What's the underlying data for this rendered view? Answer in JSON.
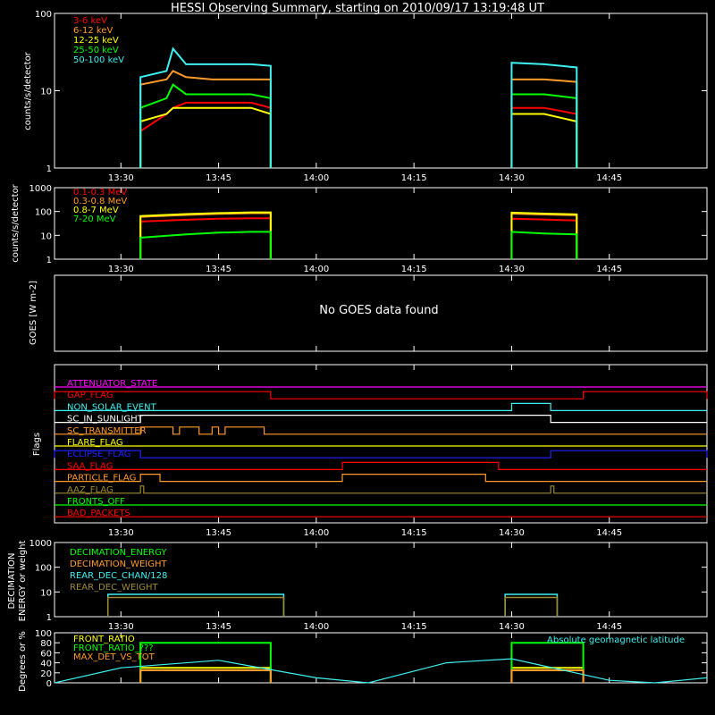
{
  "title": "HESSI Observing Summary, starting on 2010/09/17 13:19:48 UT",
  "time_ticks": [
    "13:30",
    "13:45",
    "14:00",
    "14:15",
    "14:30",
    "14:45"
  ],
  "colors": {
    "red": "#ff0000",
    "orange": "#ff9a2a",
    "yellow": "#ffff00",
    "green": "#00ff00",
    "cyan": "#3ff0f0",
    "blue": "#2020ff",
    "magenta": "#ff00ff",
    "brown": "#a08a30",
    "white": "#ffffff"
  },
  "chart_data": [
    {
      "type": "line",
      "ylabel": "counts/s/detector",
      "y_scale": "log",
      "ylim": [
        1,
        100
      ],
      "y_ticks": [
        "1",
        "10",
        "100"
      ],
      "x": [
        "13:33",
        "13:37",
        "13:38",
        "13:40",
        "13:44",
        "13:50",
        "13:53",
        "14:30",
        "14:35",
        "14:40"
      ],
      "series": [
        {
          "name": "3-6 keV",
          "color": "red",
          "values": [
            3,
            5,
            6,
            7,
            7,
            7,
            6,
            6,
            6,
            5
          ]
        },
        {
          "name": "6-12 keV",
          "color": "orange",
          "values": [
            12,
            14,
            18,
            15,
            14,
            14,
            14,
            14,
            14,
            13
          ]
        },
        {
          "name": "12-25 keV",
          "color": "yellow",
          "values": [
            4,
            5,
            6,
            6,
            6,
            6,
            5,
            5,
            5,
            4
          ]
        },
        {
          "name": "25-50 keV",
          "color": "green",
          "values": [
            6,
            8,
            12,
            9,
            9,
            9,
            8,
            9,
            9,
            8
          ]
        },
        {
          "name": "50-100 keV",
          "color": "cyan",
          "values": [
            15,
            18,
            35,
            22,
            22,
            22,
            21,
            23,
            22,
            20
          ]
        }
      ]
    },
    {
      "type": "line",
      "ylabel": "counts/s/detector",
      "y_scale": "log",
      "ylim": [
        1,
        1000
      ],
      "y_ticks": [
        "1",
        "10",
        "100",
        "1000"
      ],
      "x": [
        "13:33",
        "13:40",
        "13:45",
        "13:50",
        "13:53",
        "14:30",
        "14:35",
        "14:40"
      ],
      "series": [
        {
          "name": "0.1-0.3 MeV",
          "color": "red",
          "values": [
            38,
            45,
            50,
            52,
            52,
            50,
            46,
            42
          ]
        },
        {
          "name": "0.3-0.8 MeV",
          "color": "orange",
          "values": [
            60,
            72,
            80,
            85,
            85,
            82,
            75,
            70
          ]
        },
        {
          "name": "0.8-7 MeV",
          "color": "yellow",
          "values": [
            65,
            78,
            86,
            92,
            92,
            90,
            82,
            76
          ]
        },
        {
          "name": "7-20 MeV",
          "color": "green",
          "values": [
            8,
            11,
            13,
            14,
            14,
            14,
            12,
            11
          ]
        }
      ]
    },
    {
      "type": "line",
      "ylabel": "GOES [W m-2]",
      "message": "No GOES data found"
    },
    {
      "type": "line",
      "ylabel": "Flags",
      "flags": [
        {
          "name": "ATTENUATOR_STATE",
          "color": "magenta",
          "on": []
        },
        {
          "name": "GAP_FLAG",
          "color": "red",
          "on": [
            [
              "13:19:48",
              "13:53"
            ],
            [
              "14:41",
              "15:00"
            ]
          ]
        },
        {
          "name": "NON_SOLAR_EVENT",
          "color": "cyan",
          "on": [
            [
              "14:30",
              "14:36"
            ]
          ]
        },
        {
          "name": "SC_IN_SUNLIGHT",
          "color": "white",
          "on": [
            [
              "13:33",
              "14:36"
            ]
          ]
        },
        {
          "name": "SC_TRANSMITTER",
          "color": "orange",
          "on": [
            [
              "13:33",
              "13:38"
            ],
            [
              "13:39",
              "13:42"
            ],
            [
              "13:44",
              "13:45"
            ],
            [
              "13:46",
              "13:52"
            ]
          ]
        },
        {
          "name": "FLARE_FLAG",
          "color": "yellow",
          "on": []
        },
        {
          "name": "ECLIPSE_FLAG",
          "color": "blue",
          "on": [
            [
              "13:19:48",
              "13:33"
            ],
            [
              "14:36",
              "15:00"
            ]
          ]
        },
        {
          "name": "SAA_FLAG",
          "color": "red",
          "on": [
            [
              "14:04",
              "14:28"
            ]
          ]
        },
        {
          "name": "PARTICLE_FLAG",
          "color": "orange",
          "on": [
            [
              "13:33",
              "13:36"
            ],
            [
              "14:04",
              "14:26"
            ]
          ]
        },
        {
          "name": "AAZ_FLAG",
          "color": "brown",
          "on": [
            [
              "13:33",
              "13:33:30"
            ],
            [
              "14:36",
              "14:36:30"
            ]
          ]
        },
        {
          "name": "FRONTS_OFF",
          "color": "green",
          "on": []
        },
        {
          "name": "BAD_PACKETS",
          "color": "red",
          "on": []
        }
      ]
    },
    {
      "type": "line",
      "ylabel": "DECIMATION ENERGY or weight",
      "y_scale": "log",
      "ylim": [
        1,
        1000
      ],
      "y_ticks": [
        "1",
        "10",
        "100",
        "1000"
      ],
      "series": [
        {
          "name": "DECIMATION_ENERGY",
          "color": "green",
          "segments": []
        },
        {
          "name": "DECIMATION_WEIGHT",
          "color": "orange",
          "segments": []
        },
        {
          "name": "REAR_DEC_CHAN/128",
          "color": "cyan",
          "segments": [
            {
              "x": [
                "13:28",
                "13:55"
              ],
              "value": 8
            },
            {
              "x": [
                "14:29",
                "14:37"
              ],
              "value": 8
            }
          ]
        },
        {
          "name": "REAR_DEC_WEIGHT",
          "color": "brown",
          "segments": [
            {
              "x": [
                "13:28",
                "13:55"
              ],
              "value": 6
            },
            {
              "x": [
                "14:29",
                "14:37"
              ],
              "value": 6
            }
          ]
        }
      ]
    },
    {
      "type": "line",
      "ylabel": "Degrees or %",
      "ylim": [
        0,
        100
      ],
      "y_ticks": [
        "0",
        "20",
        "40",
        "60",
        "80",
        "100"
      ],
      "annotation": "Absolute geomagnetic latitude",
      "series": [
        {
          "name": "FRONT_RATIO",
          "color": "yellow",
          "segments": [
            {
              "x": [
                "13:33",
                "13:53"
              ],
              "value": 30
            },
            {
              "x": [
                "14:30",
                "14:41"
              ],
              "value": 30
            }
          ]
        },
        {
          "name": "FRONT_RATIO_???",
          "color": "green",
          "segments": [
            {
              "x": [
                "13:33",
                "13:53"
              ],
              "value": 80
            },
            {
              "x": [
                "14:30",
                "14:41"
              ],
              "value": 80
            }
          ]
        },
        {
          "name": "MAX_DET_VS_TOT",
          "color": "orange",
          "segments": [
            {
              "x": [
                "13:33",
                "13:53"
              ],
              "value": 25
            },
            {
              "x": [
                "14:30",
                "14:41"
              ],
              "value": 25
            }
          ]
        },
        {
          "name": "Absolute geomagnetic latitude",
          "color": "cyan",
          "x": [
            "13:19:48",
            "13:30",
            "13:45",
            "14:00",
            "14:08",
            "14:20",
            "14:30",
            "14:45",
            "14:52",
            "15:00"
          ],
          "values": [
            0,
            30,
            45,
            10,
            0,
            40,
            48,
            5,
            0,
            10
          ]
        }
      ]
    }
  ]
}
